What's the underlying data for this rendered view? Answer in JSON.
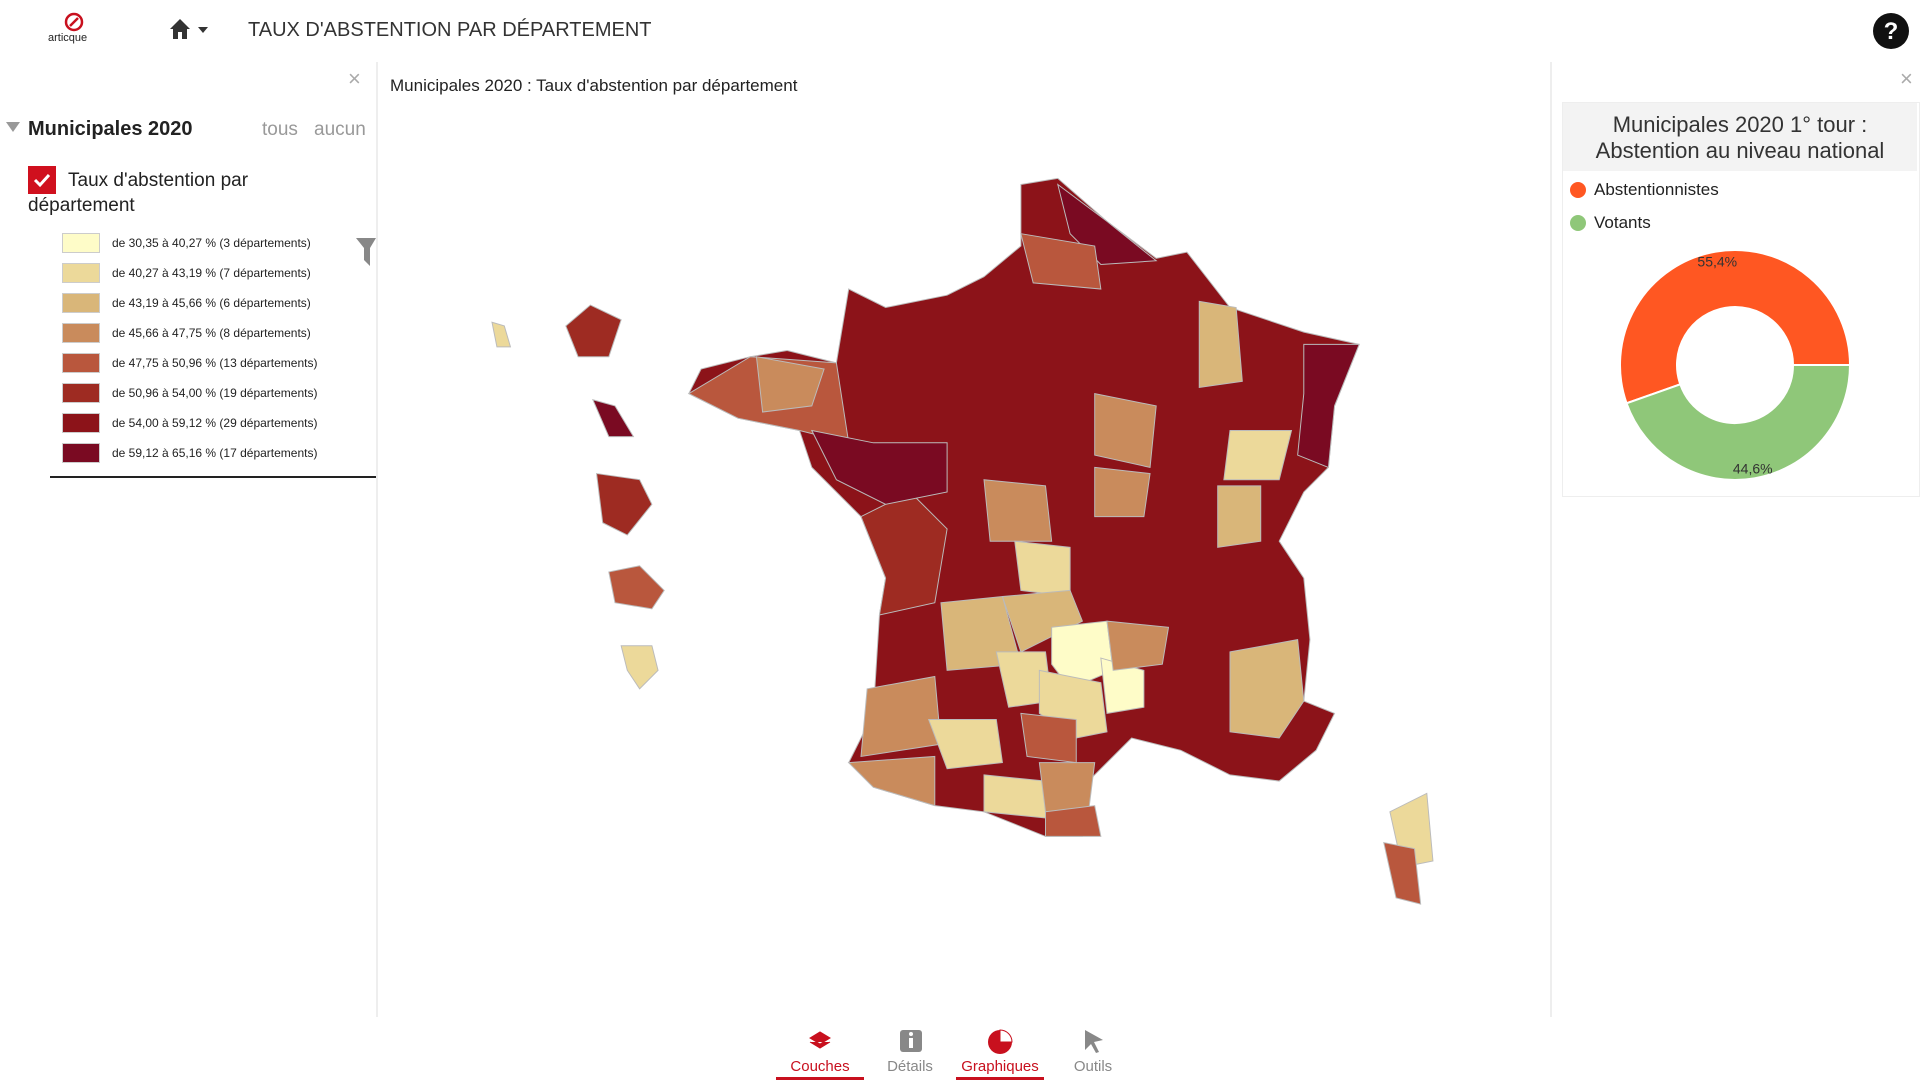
{
  "header": {
    "logo": "articque",
    "title": "TAUX D'ABSTENTION PAR DÉPARTEMENT"
  },
  "layers": {
    "group": "Municipales 2020",
    "all": "tous",
    "none": "aucun",
    "layer": "Taux d'abstention par département",
    "legend": [
      {
        "label": "de 30,35 à 40,27 % (3 départements)",
        "color": "#fefcc8"
      },
      {
        "label": "de 40,27 à 43,19 % (7 départements)",
        "color": "#ecd99a"
      },
      {
        "label": "de 43,19 à 45,66 % (6 départements)",
        "color": "#d9b679"
      },
      {
        "label": "de 45,66 à 47,75 % (8 départements)",
        "color": "#c98b5c"
      },
      {
        "label": "de 47,75 à 50,96 % (13 départements)",
        "color": "#b9573d"
      },
      {
        "label": "de 50,96 à 54,00 % (19 départements)",
        "color": "#9e2b22"
      },
      {
        "label": "de 54,00 à 59,12 % (29 départements)",
        "color": "#8c1319"
      },
      {
        "label": "de 59,12 à 65,16 % (17 départements)",
        "color": "#7a0a22"
      }
    ]
  },
  "map": {
    "title": "Municipales 2020 : Taux d'abstention par département"
  },
  "chart_data": {
    "type": "donut",
    "title": "Municipales 2020 1° tour : Abstention au niveau national",
    "categories": [
      "Abstentionnistes",
      "Votants"
    ],
    "values": [
      55.4,
      44.6
    ],
    "value_labels": [
      "55,4%",
      "44,6%"
    ],
    "colors": [
      "#ff5722",
      "#8fc779"
    ]
  },
  "tabs": [
    "Couches",
    "Détails",
    "Graphiques",
    "Outils"
  ]
}
